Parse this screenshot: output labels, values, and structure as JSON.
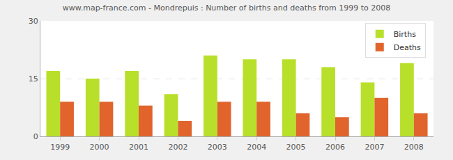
{
  "chart_data": {
    "type": "bar",
    "title": "www.map-france.com - Mondrepuis : Number of births and deaths from 1999 to 2008",
    "categories": [
      "1999",
      "2000",
      "2001",
      "2002",
      "2003",
      "2004",
      "2005",
      "2006",
      "2007",
      "2008"
    ],
    "series": [
      {
        "name": "Births",
        "color": "#b8e02b",
        "values": [
          17,
          15,
          17,
          11,
          21,
          20,
          20,
          18,
          14,
          19
        ]
      },
      {
        "name": "Deaths",
        "color": "#e0642c",
        "values": [
          9,
          9,
          8,
          4,
          9,
          9,
          6,
          5,
          10,
          6
        ]
      }
    ],
    "ylim": [
      0,
      30
    ],
    "yticks": [
      0,
      15,
      30
    ],
    "grid": true,
    "legend": "top-right"
  }
}
